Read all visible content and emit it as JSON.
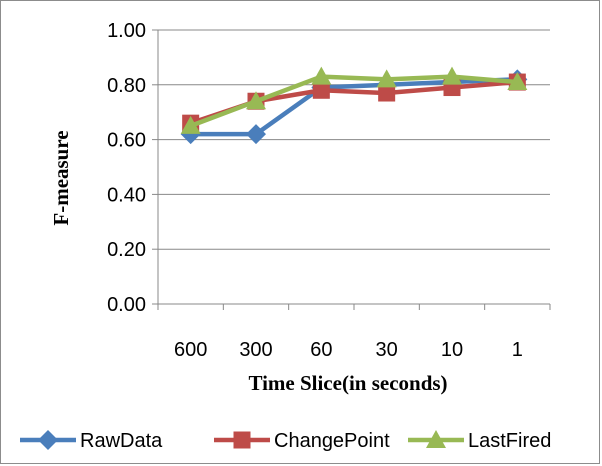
{
  "chart_data": {
    "type": "line",
    "title": "",
    "xlabel": "Time Slice(in seconds)",
    "ylabel": "F-measure",
    "categories": [
      "600",
      "300",
      "60",
      "30",
      "10",
      "1"
    ],
    "ylim": [
      0,
      1
    ],
    "yticks": [
      "0.00",
      "0.20",
      "0.40",
      "0.60",
      "0.80",
      "1.00"
    ],
    "grid": true,
    "legend_position": "bottom",
    "series": [
      {
        "name": "RawData",
        "color": "#4a7ebb",
        "marker": "diamond",
        "values": [
          0.62,
          0.62,
          0.79,
          0.8,
          0.81,
          0.82
        ]
      },
      {
        "name": "ChangePoint",
        "color": "#be4b48",
        "marker": "square",
        "values": [
          0.66,
          0.74,
          0.78,
          0.77,
          0.79,
          0.81
        ]
      },
      {
        "name": "LastFired",
        "color": "#98b954",
        "marker": "triangle",
        "values": [
          0.65,
          0.74,
          0.83,
          0.82,
          0.83,
          0.81
        ]
      }
    ]
  }
}
